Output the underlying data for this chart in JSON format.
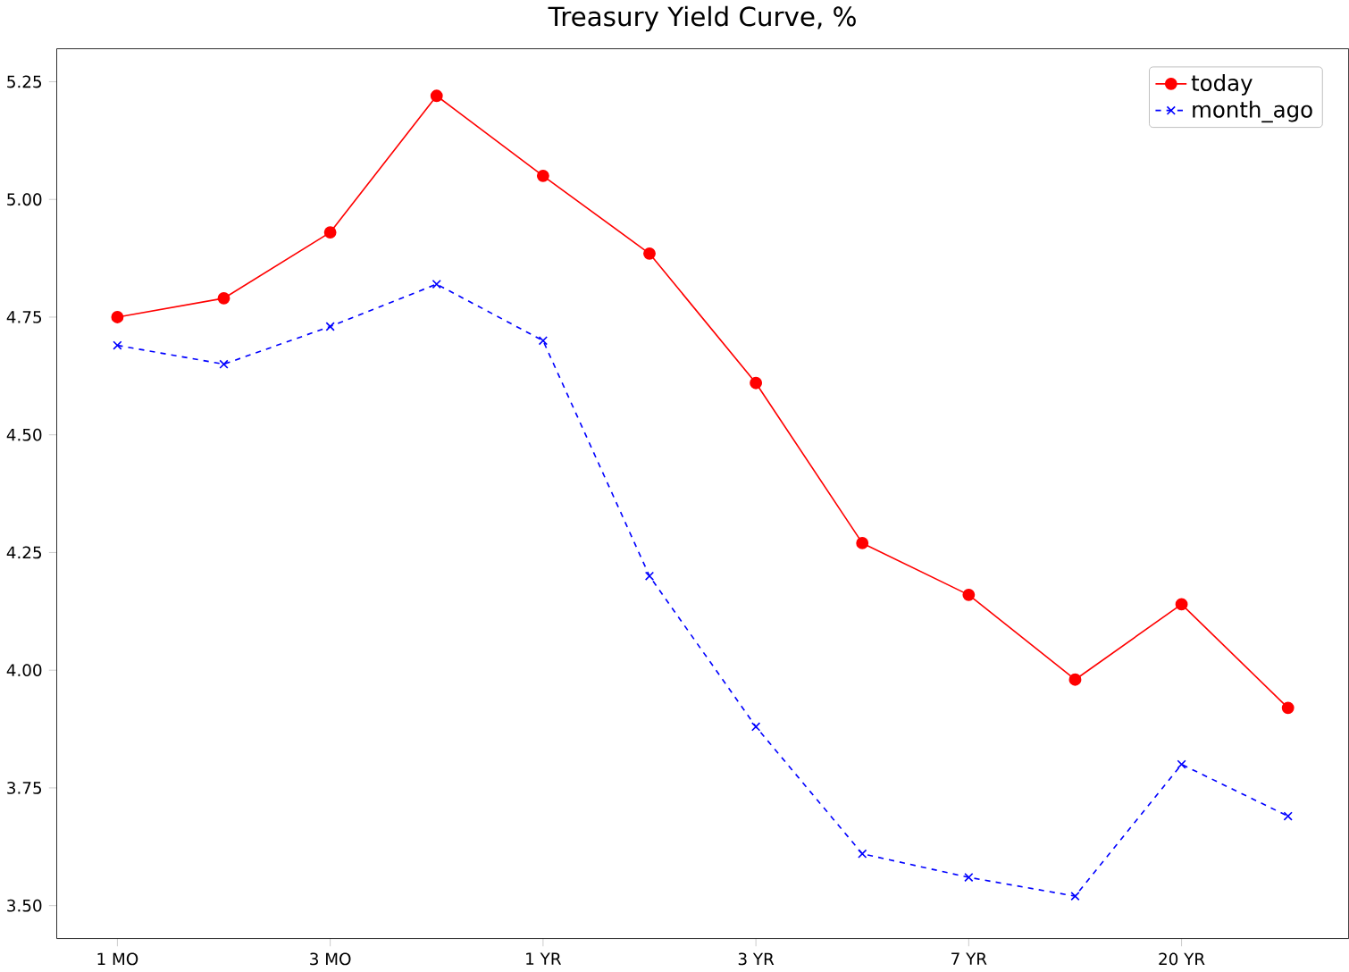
{
  "chart_data": {
    "type": "line",
    "title": "Treasury Yield Curve, %",
    "categories": [
      "1 MO",
      null,
      "3 MO",
      null,
      "1 YR",
      null,
      "3 YR",
      null,
      "7 YR",
      null,
      "20 YR",
      null
    ],
    "series": [
      {
        "name": "today",
        "color": "#ff0000",
        "marker": "circle",
        "line_style": "solid",
        "values": [
          4.75,
          4.79,
          4.93,
          5.22,
          5.05,
          4.885,
          4.61,
          4.27,
          4.16,
          3.98,
          4.14,
          3.92
        ]
      },
      {
        "name": "month_ago",
        "color": "#0000ff",
        "marker": "cross",
        "line_style": "dashed",
        "values": [
          4.69,
          4.65,
          4.73,
          4.82,
          4.7,
          4.2,
          3.88,
          3.61,
          3.56,
          3.52,
          3.8,
          3.69
        ]
      }
    ],
    "ylim": [
      3.43,
      5.32
    ],
    "yticks": [
      {
        "value": 3.5,
        "label": "3.50"
      },
      3.75,
      {
        "value": 4.0,
        "label": "4.00"
      },
      4.25,
      {
        "value": 4.5,
        "label": "4.50"
      },
      4.75,
      {
        "value": 5.0,
        "label": "5.00"
      },
      5.25
    ],
    "legend": "top right",
    "grid": false
  }
}
